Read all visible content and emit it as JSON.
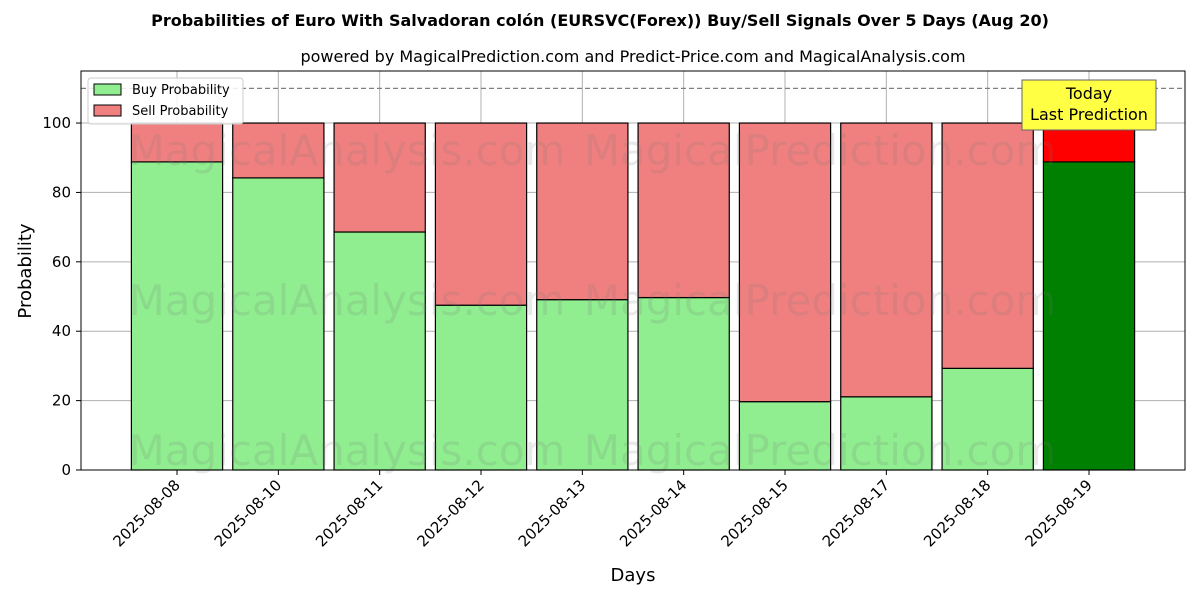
{
  "chart_data": {
    "type": "bar",
    "stacked": true,
    "title": "Probabilities of Euro With Salvadoran colón (EURSVC(Forex)) Buy/Sell Signals Over 5 Days (Aug 20)",
    "subtitle": "powered by MagicalPrediction.com and Predict-Price.com and MagicalAnalysis.com",
    "xlabel": "Days",
    "ylabel": "Probability",
    "ylim": [
      0,
      115
    ],
    "yticks": [
      0,
      20,
      40,
      60,
      80,
      100
    ],
    "grid": true,
    "legend_position": "top-left",
    "reference_line": 110,
    "categories": [
      "2025-08-08",
      "2025-08-10",
      "2025-08-11",
      "2025-08-12",
      "2025-08-13",
      "2025-08-14",
      "2025-08-15",
      "2025-08-17",
      "2025-08-18",
      "2025-08-19"
    ],
    "series": [
      {
        "name": "Buy Probability",
        "values": [
          88.8,
          84.2,
          68.6,
          47.5,
          49.1,
          49.7,
          19.7,
          21.1,
          29.3,
          88.8
        ]
      },
      {
        "name": "Sell Probability",
        "values": [
          11.2,
          15.8,
          31.4,
          52.5,
          50.9,
          50.3,
          80.3,
          78.9,
          70.7,
          11.2
        ]
      }
    ],
    "colors": {
      "buy": "#90ee90",
      "sell": "#f08080",
      "buy_highlight": "#008000",
      "sell_highlight": "#ff0000",
      "annotation_bg": "#ffff44"
    },
    "annotation": {
      "line1": "Today",
      "line2": "Last Prediction",
      "category": "2025-08-19"
    },
    "watermarks": [
      "MagicalAnalysis.com",
      "MagicalPrediction.com",
      "MagicalAnalysis.com",
      "MagicalPrediction.com",
      "MagicalAnalysis.com",
      "MagicalPrediction.com"
    ]
  }
}
